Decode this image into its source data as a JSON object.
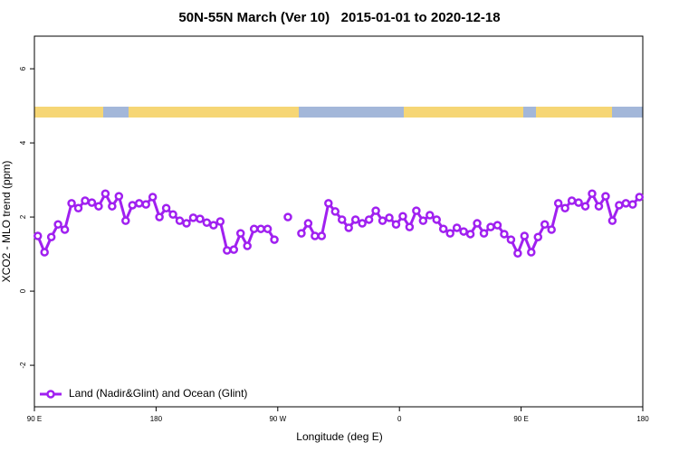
{
  "chart_data": {
    "type": "line",
    "title": "50N-55N March (Ver 10)   2015-01-01 to 2020-12-18",
    "xlabel": "Longitude (deg E)",
    "ylabel": "XCO2 - MLO trend (ppm)",
    "xlim": [
      90,
      540
    ],
    "ylim": [
      -3.12,
      6.88
    ],
    "xticks": [
      {
        "value": 90,
        "label": "90 E"
      },
      {
        "value": 180,
        "label": "180"
      },
      {
        "value": 270,
        "label": "90 W"
      },
      {
        "value": 360,
        "label": "0"
      },
      {
        "value": 450,
        "label": "90 E"
      },
      {
        "value": 540,
        "label": "180"
      }
    ],
    "yticks": [
      -2,
      0,
      2,
      4,
      6
    ],
    "legend": "bottomleft",
    "x": [
      92.5,
      97.5,
      102.5,
      107.5,
      112.5,
      117.5,
      122.5,
      127.5,
      132.5,
      137.5,
      142.5,
      147.5,
      152.5,
      157.5,
      162.5,
      167.5,
      172.5,
      177.5,
      182.5,
      187.5,
      192.5,
      197.5,
      202.5,
      207.5,
      212.5,
      217.5,
      222.5,
      227.5,
      232.5,
      237.5,
      242.5,
      247.5,
      252.5,
      257.5,
      262.5,
      267.5,
      272.5,
      277.5,
      282.5,
      287.5,
      292.5,
      297.5,
      302.5,
      307.5,
      312.5,
      317.5,
      322.5,
      327.5,
      332.5,
      337.5,
      342.5,
      347.5,
      352.5,
      357.5,
      362.5,
      367.5,
      372.5,
      377.5,
      382.5,
      387.5,
      392.5,
      397.5,
      402.5,
      407.5,
      412.5,
      417.5,
      422.5,
      427.5,
      432.5,
      437.5,
      442.5,
      447.5,
      452.5,
      457.5,
      462.5,
      467.5,
      472.5,
      477.5,
      482.5,
      487.5,
      492.5,
      497.5,
      502.5,
      507.5,
      512.5,
      517.5,
      522.5,
      527.5,
      532.5,
      537.5
    ],
    "series": [
      {
        "name": "Land (Nadir&Glint) and Ocean (Glint)",
        "color": "#a020f0",
        "values": [
          1.49,
          1.05,
          1.46,
          1.8,
          1.66,
          2.37,
          2.24,
          2.44,
          2.39,
          2.29,
          2.63,
          2.29,
          2.56,
          1.9,
          2.32,
          2.37,
          2.34,
          2.54,
          2.0,
          2.24,
          2.07,
          1.9,
          1.83,
          1.98,
          1.95,
          1.85,
          1.78,
          1.88,
          1.1,
          1.12,
          1.56,
          1.22,
          1.68,
          1.68,
          1.68,
          1.39,
          null,
          2.0,
          null,
          1.56,
          1.83,
          1.49,
          1.49,
          2.37,
          2.15,
          1.93,
          1.71,
          1.93,
          1.83,
          1.93,
          2.17,
          1.9,
          1.98,
          1.8,
          2.02,
          1.73,
          2.17,
          1.9,
          2.05,
          1.93,
          1.68,
          1.56,
          1.71,
          1.61,
          1.54,
          1.83,
          1.56,
          1.73,
          1.78,
          1.54,
          1.39,
          1.02,
          1.49,
          1.05,
          1.46,
          1.8,
          1.66,
          2.37,
          2.24,
          2.44,
          2.39,
          2.29,
          2.63,
          2.29,
          2.56,
          1.9,
          2.32,
          2.37,
          2.34,
          2.54
        ]
      }
    ]
  }
}
